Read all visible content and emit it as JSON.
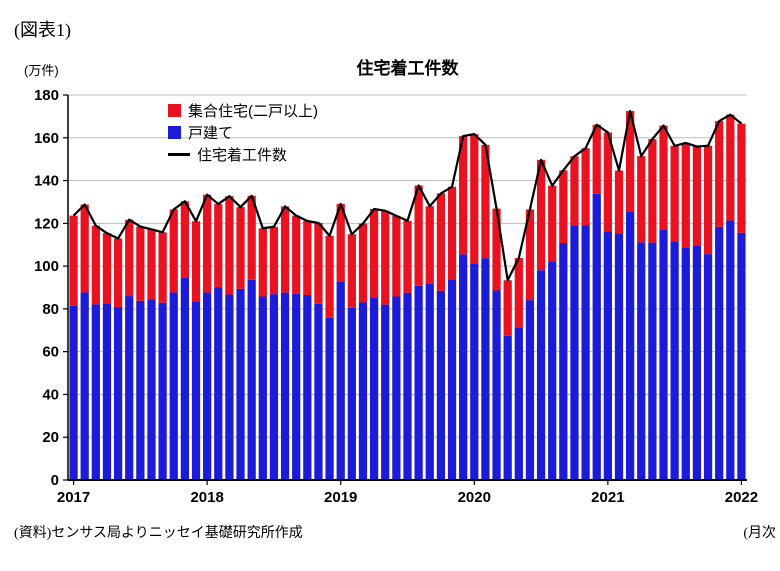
{
  "figure_label": "(図表1)",
  "title": "住宅着工件数",
  "y_axis_unit": "(万件)",
  "source_note": "(資料)センサス局よりニッセイ基礎研究所作成",
  "x_axis_note": "(月次",
  "legend": [
    {
      "label": "集合住宅(二戸以上)",
      "type": "square",
      "color": "#e81220"
    },
    {
      "label": "戸建て",
      "type": "square",
      "color": "#1c1cd8"
    },
    {
      "label": "住宅着工件数",
      "type": "line",
      "color": "#000000"
    }
  ],
  "chart_data": {
    "type": "bar",
    "subtype": "stacked-bar-with-line",
    "title": "住宅着工件数",
    "ylabel": "(万件)",
    "ylim": [
      0,
      180
    ],
    "y_ticks": [
      0,
      20,
      40,
      60,
      80,
      100,
      120,
      140,
      160,
      180
    ],
    "grid": true,
    "legend_position": "top-left-inside",
    "year_ticks": [
      "2017",
      "2018",
      "2019",
      "2020",
      "2021",
      "2022"
    ],
    "year_tick_indices": [
      0,
      12,
      24,
      36,
      48,
      60
    ],
    "x": [
      "2017-01",
      "2017-02",
      "2017-03",
      "2017-04",
      "2017-05",
      "2017-06",
      "2017-07",
      "2017-08",
      "2017-09",
      "2017-10",
      "2017-11",
      "2017-12",
      "2018-01",
      "2018-02",
      "2018-03",
      "2018-04",
      "2018-05",
      "2018-06",
      "2018-07",
      "2018-08",
      "2018-09",
      "2018-10",
      "2018-11",
      "2018-12",
      "2019-01",
      "2019-02",
      "2019-03",
      "2019-04",
      "2019-05",
      "2019-06",
      "2019-07",
      "2019-08",
      "2019-09",
      "2019-10",
      "2019-11",
      "2019-12",
      "2020-01",
      "2020-02",
      "2020-03",
      "2020-04",
      "2020-05",
      "2020-06",
      "2020-07",
      "2020-08",
      "2020-09",
      "2020-10",
      "2020-11",
      "2020-12",
      "2021-01",
      "2021-02",
      "2021-03",
      "2021-04",
      "2021-05",
      "2021-06",
      "2021-07",
      "2021-08",
      "2021-09",
      "2021-10",
      "2021-11",
      "2021-12",
      "2022-01"
    ],
    "series": [
      {
        "name": "戸建て",
        "type": "bar",
        "color": "#1c1cd8",
        "values": [
          81.5,
          87.7,
          82.1,
          82.6,
          80.9,
          86.0,
          83.8,
          84.4,
          82.9,
          87.7,
          94.8,
          83.6,
          87.7,
          90.0,
          86.7,
          89.4,
          93.6,
          85.8,
          86.9,
          87.6,
          87.1,
          86.5,
          82.4,
          75.8,
          92.6,
          80.5,
          83.0,
          85.4,
          82.0,
          85.8,
          87.6,
          90.8,
          91.8,
          88.5,
          93.8,
          105.5,
          101.3,
          103.7,
          88.6,
          67.4,
          71.4,
          84.1,
          98.1,
          102.2,
          110.8,
          119.1,
          119.0,
          133.8,
          116.2,
          115.0,
          125.5,
          111.1,
          111.0,
          116.9,
          111.6,
          108.8,
          109.7,
          105.6,
          118.4,
          121.3,
          115.6
        ]
      },
      {
        "name": "集合住宅(二戸以上)",
        "type": "bar",
        "color": "#e81220",
        "values": [
          42.1,
          41.1,
          36.8,
          32.8,
          32.0,
          35.7,
          34.7,
          32.8,
          32.9,
          38.8,
          35.5,
          37.4,
          45.7,
          39.0,
          46.0,
          38.2,
          39.3,
          31.9,
          31.5,
          40.3,
          36.5,
          34.6,
          37.8,
          38.4,
          36.5,
          34.4,
          36.9,
          41.3,
          43.9,
          37.7,
          33.6,
          46.9,
          36.2,
          45.5,
          43.3,
          55.3,
          60.4,
          53.0,
          38.3,
          26.0,
          32.4,
          42.4,
          51.6,
          35.4,
          34.0,
          32.3,
          36.1,
          32.3,
          46.3,
          29.7,
          47.0,
          40.3,
          48.4,
          48.8,
          44.6,
          48.8,
          46.2,
          50.7,
          49.4,
          49.5,
          51.0
        ]
      },
      {
        "name": "住宅着工件数",
        "type": "line",
        "color": "#000000",
        "values": [
          123.6,
          128.8,
          118.9,
          115.4,
          112.9,
          121.7,
          118.5,
          117.2,
          115.8,
          126.5,
          130.3,
          121.0,
          133.4,
          129.0,
          132.7,
          127.6,
          132.9,
          117.7,
          118.4,
          127.9,
          123.6,
          121.1,
          120.2,
          114.2,
          129.1,
          114.9,
          119.9,
          126.7,
          125.9,
          123.5,
          121.2,
          137.7,
          128.0,
          134.0,
          137.1,
          160.8,
          161.7,
          156.7,
          126.9,
          93.4,
          103.8,
          126.5,
          149.7,
          137.6,
          144.8,
          151.4,
          155.1,
          166.1,
          162.5,
          144.7,
          172.5,
          151.4,
          159.4,
          165.7,
          156.2,
          157.6,
          155.9,
          156.3,
          167.8,
          170.8,
          166.6
        ]
      }
    ]
  }
}
